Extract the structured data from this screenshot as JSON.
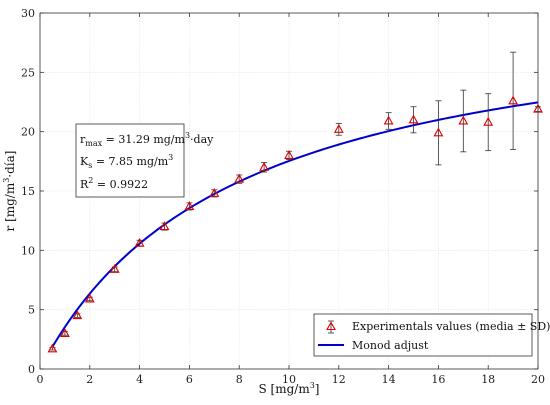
{
  "chart_data": {
    "type": "scatter",
    "xlabel": "S [mg/m",
    "xlabel_sup": "3",
    "xlabel_end": "]",
    "ylabel": "r [mg/m",
    "ylabel_sup": "3",
    "ylabel_end": "·día]",
    "xlim": [
      0,
      20
    ],
    "ylim": [
      0,
      30
    ],
    "xticks": [
      0,
      2,
      4,
      6,
      8,
      10,
      12,
      14,
      16,
      18,
      20
    ],
    "yticks": [
      0,
      5,
      10,
      15,
      20,
      25,
      30
    ],
    "grid": true,
    "legend_position": "bottom-right",
    "series": [
      {
        "name": "Experimentals values (media ± SD)",
        "kind": "points-errorbars",
        "color": "#e00000",
        "errorbar_color": "#333333",
        "x": [
          0.5,
          1,
          1.5,
          2,
          3,
          4,
          5,
          6,
          7,
          8,
          9,
          10,
          12,
          14,
          15,
          16,
          17,
          18,
          19,
          20
        ],
        "y": [
          1.7,
          3.0,
          4.5,
          5.9,
          8.4,
          10.6,
          12.0,
          13.7,
          14.8,
          16.0,
          17.0,
          18.0,
          20.2,
          20.9,
          21.0,
          19.9,
          20.9,
          20.8,
          22.6,
          21.9
        ],
        "err": [
          0.1,
          0.15,
          0.15,
          0.15,
          0.2,
          0.25,
          0.3,
          0.3,
          0.3,
          0.35,
          0.4,
          0.35,
          0.5,
          0.7,
          1.1,
          2.7,
          2.6,
          2.4,
          4.1,
          0.2
        ]
      },
      {
        "name": "Monod adjust",
        "kind": "curve",
        "color": "#0000cc",
        "model": "monod",
        "rmax": 31.29,
        "ks": 7.85,
        "x_start": 0.5,
        "x_end": 20
      }
    ],
    "annotation": {
      "rmax_label": "r",
      "rmax_sub": "max",
      "rmax_value": " = 31.29 mg/m",
      "rmax_sup": "3",
      "rmax_unit": "·day",
      "ks_label": "K",
      "ks_sub": "s",
      "ks_value": " = 7.85 mg/m",
      "ks_sup": "3",
      "r2_label": "R",
      "r2_sup": "2",
      "r2_value": " = 0.9922"
    }
  }
}
